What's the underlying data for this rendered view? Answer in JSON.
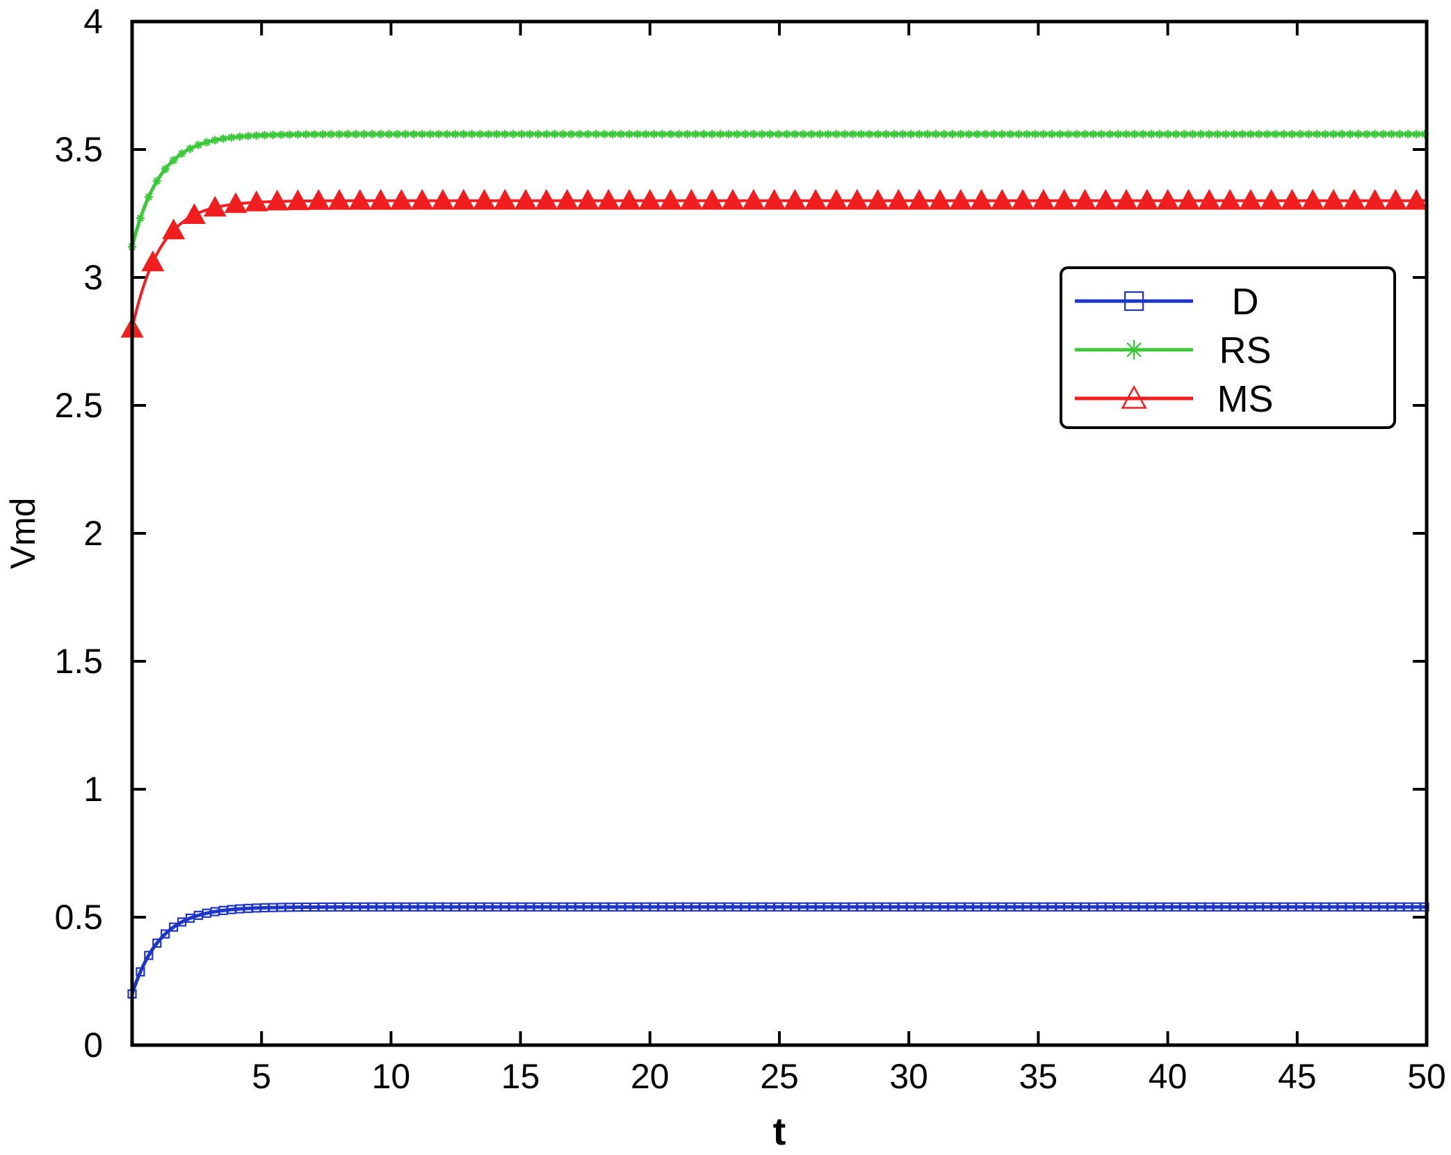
{
  "chart_data": {
    "type": "line",
    "xlabel": "t",
    "ylabel": "Vmd",
    "xlim": [
      0,
      50
    ],
    "ylim": [
      0,
      4
    ],
    "x_ticks": [
      5,
      10,
      15,
      20,
      25,
      30,
      35,
      40,
      45,
      50
    ],
    "y_ticks": [
      0,
      0.5,
      1,
      1.5,
      2,
      2.5,
      3,
      3.5,
      4
    ],
    "y_tick_labels": [
      "0",
      "0.5",
      "1",
      "1.5",
      "2",
      "2.5",
      "3",
      "3.5",
      "4"
    ],
    "grid": false,
    "legend_position": "upper-right",
    "series": [
      {
        "name": "D",
        "color": "#1f35c8",
        "marker": "square",
        "start": 0.2,
        "steady": 0.54,
        "rise_time": 3.5
      },
      {
        "name": "RS",
        "color": "#3cc83a",
        "marker": "star",
        "start": 3.12,
        "steady": 3.56,
        "rise_time": 3.5
      },
      {
        "name": "MS",
        "color": "#f01e1e",
        "marker": "triangle",
        "start": 2.8,
        "steady": 3.3,
        "rise_time": 3.5
      }
    ]
  }
}
